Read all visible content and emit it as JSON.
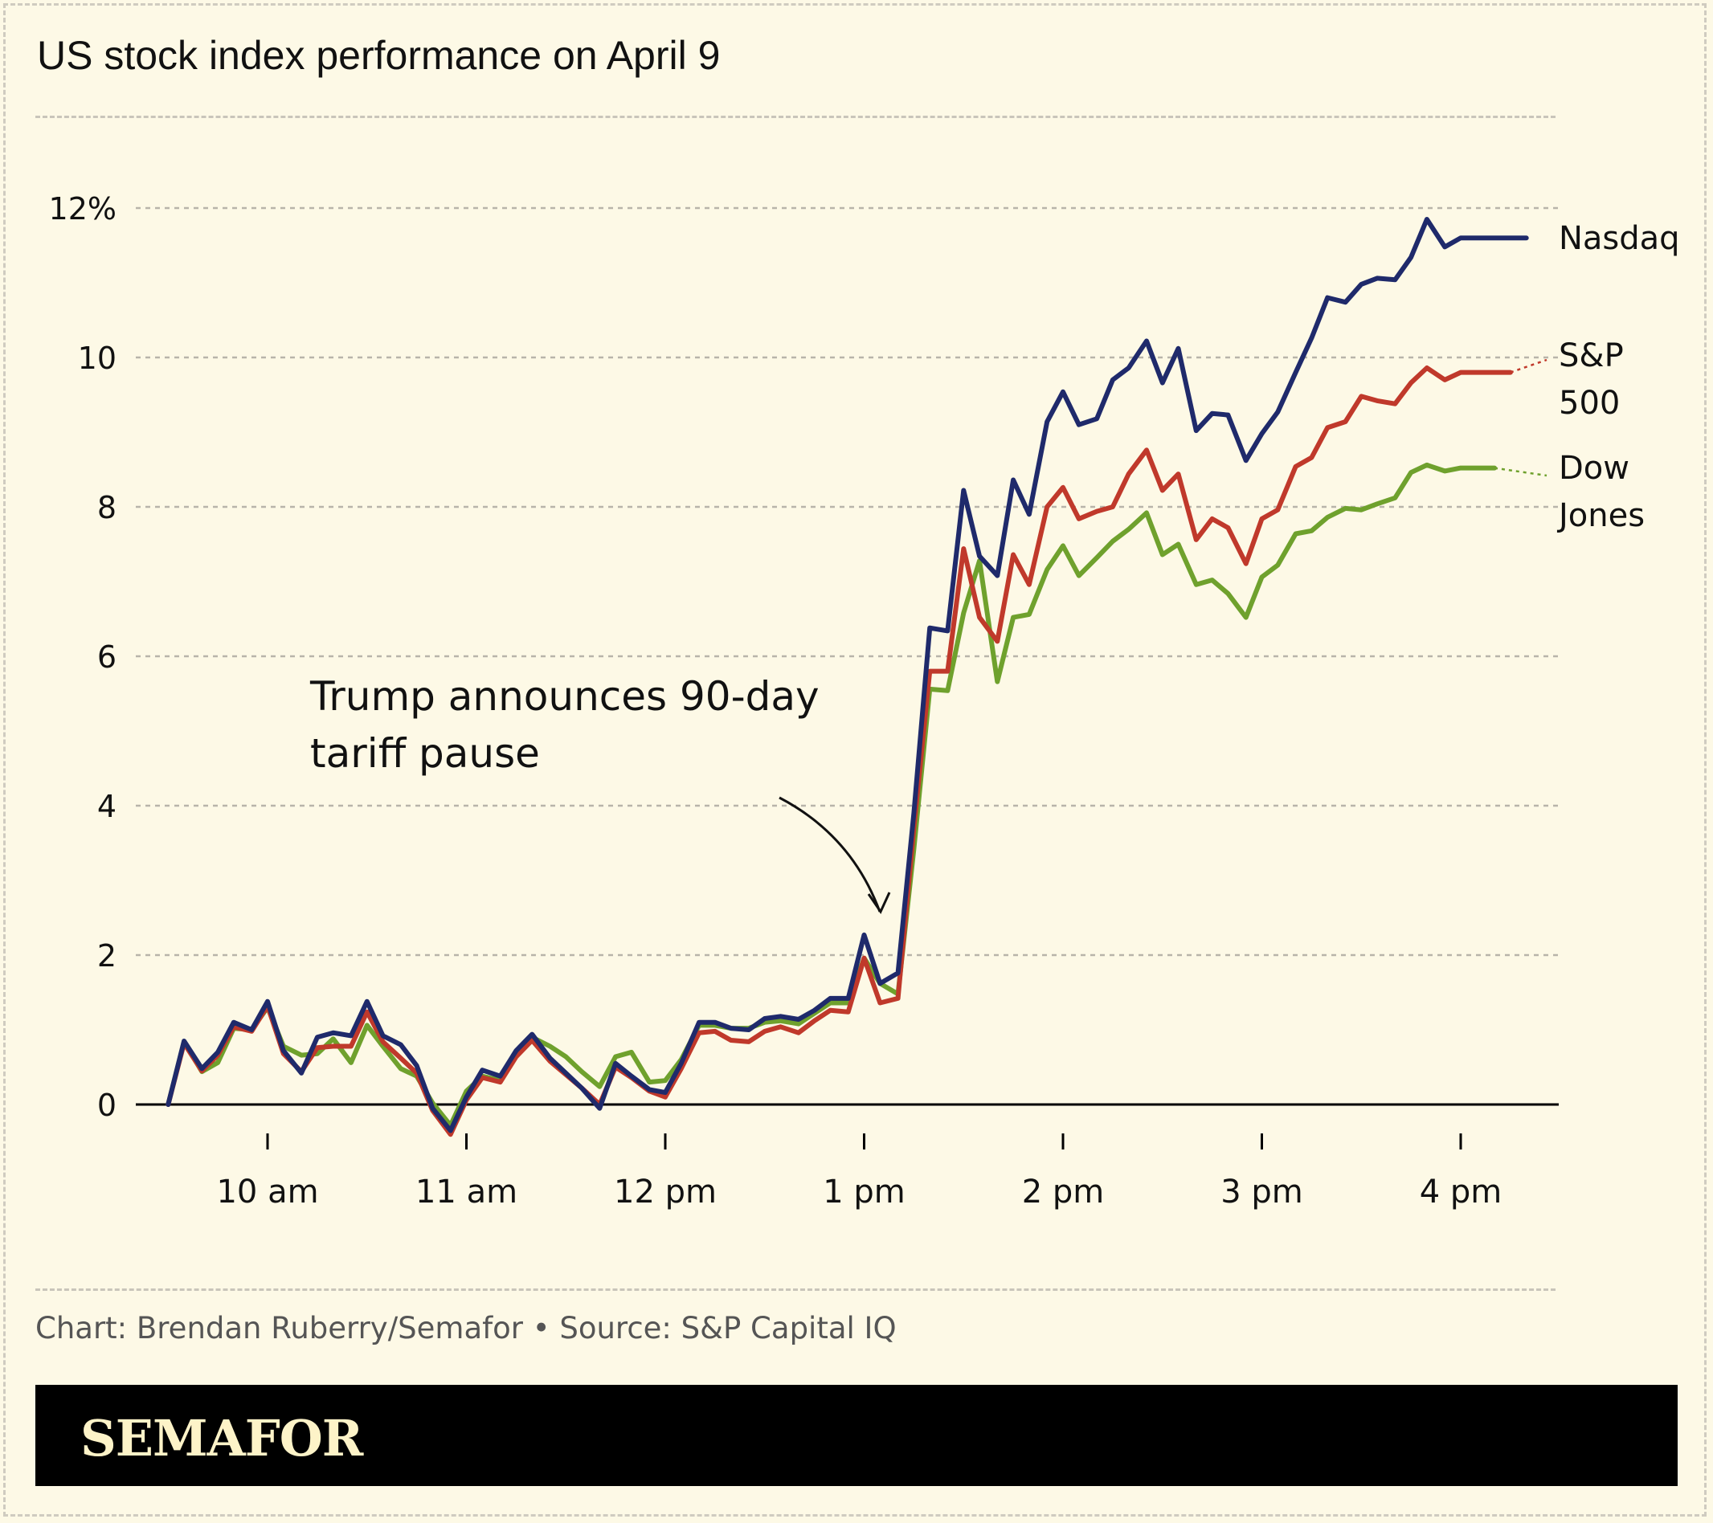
{
  "header": {
    "title": "US stock index performance on April 9"
  },
  "annotation": {
    "text_lines": [
      "Trump announces 90-day",
      "tariff pause"
    ]
  },
  "footer": {
    "credit": "Chart: Brendan Ruberry/Semafor • Source: S&P Capital IQ"
  },
  "brand": {
    "name": "SEMAFOR"
  },
  "colors": {
    "background": "#fdf9e6",
    "nasdaq": "#1f2a6b",
    "sp500": "#c0392b",
    "dow": "#6fa12d",
    "grid": "#b8b4aa",
    "axis": "#000000"
  },
  "chart_data": {
    "type": "line",
    "title": "US stock index performance on April 9",
    "xlabel": "",
    "ylabel": "",
    "x_unit": "hour (24h clock)",
    "xlim": [
      9.5,
      16.25
    ],
    "ylim": [
      0,
      12
    ],
    "grid": "horizontal dashed",
    "legend": "direct labels at right end of lines",
    "x_ticks": [
      {
        "value": 10,
        "label": "10 am"
      },
      {
        "value": 11,
        "label": "11 am"
      },
      {
        "value": 12,
        "label": "12 pm"
      },
      {
        "value": 13,
        "label": "1 pm"
      },
      {
        "value": 14,
        "label": "2 pm"
      },
      {
        "value": 15,
        "label": "3 pm"
      },
      {
        "value": 16,
        "label": "4 pm"
      }
    ],
    "y_ticks": [
      {
        "value": 0,
        "label": "0"
      },
      {
        "value": 2,
        "label": "2"
      },
      {
        "value": 4,
        "label": "4"
      },
      {
        "value": 6,
        "label": "6"
      },
      {
        "value": 8,
        "label": "8"
      },
      {
        "value": 10,
        "label": "10"
      },
      {
        "value": 12,
        "label": "12%"
      }
    ],
    "annotation_x": 13.08,
    "annotation_y": 2.5,
    "series": [
      {
        "key": "nasdaq",
        "name": "Nasdaq",
        "label_lines": [
          "Nasdaq"
        ],
        "color": "#1f2a6b",
        "values": [
          [
            9.5,
            0
          ],
          [
            9.58,
            0.85
          ],
          [
            9.67,
            0.48
          ],
          [
            9.75,
            0.7
          ],
          [
            9.83,
            1.1
          ],
          [
            9.92,
            1.0
          ],
          [
            10.0,
            1.38
          ],
          [
            10.08,
            0.72
          ],
          [
            10.17,
            0.42
          ],
          [
            10.25,
            0.9
          ],
          [
            10.33,
            0.96
          ],
          [
            10.42,
            0.92
          ],
          [
            10.5,
            1.38
          ],
          [
            10.58,
            0.92
          ],
          [
            10.67,
            0.8
          ],
          [
            10.75,
            0.52
          ],
          [
            10.83,
            -0.05
          ],
          [
            10.92,
            -0.35
          ],
          [
            11.0,
            0.1
          ],
          [
            11.08,
            0.46
          ],
          [
            11.17,
            0.38
          ],
          [
            11.25,
            0.72
          ],
          [
            11.33,
            0.94
          ],
          [
            11.42,
            0.62
          ],
          [
            11.5,
            0.42
          ],
          [
            11.58,
            0.22
          ],
          [
            11.67,
            -0.05
          ],
          [
            11.75,
            0.55
          ],
          [
            11.83,
            0.38
          ],
          [
            11.92,
            0.2
          ],
          [
            12.0,
            0.16
          ],
          [
            12.08,
            0.55
          ],
          [
            12.17,
            1.1
          ],
          [
            12.25,
            1.1
          ],
          [
            12.33,
            1.02
          ],
          [
            12.42,
            1.0
          ],
          [
            12.5,
            1.15
          ],
          [
            12.58,
            1.18
          ],
          [
            12.67,
            1.14
          ],
          [
            12.75,
            1.26
          ],
          [
            12.83,
            1.42
          ],
          [
            12.92,
            1.42
          ],
          [
            13.0,
            2.27
          ],
          [
            13.08,
            1.62
          ],
          [
            13.17,
            1.76
          ],
          [
            13.25,
            3.9
          ],
          [
            13.33,
            6.38
          ],
          [
            13.42,
            6.34
          ],
          [
            13.5,
            8.22
          ],
          [
            13.58,
            7.34
          ],
          [
            13.67,
            7.08
          ],
          [
            13.75,
            8.36
          ],
          [
            13.83,
            7.9
          ],
          [
            13.92,
            9.14
          ],
          [
            14.0,
            9.54
          ],
          [
            14.08,
            9.1
          ],
          [
            14.17,
            9.18
          ],
          [
            14.25,
            9.7
          ],
          [
            14.33,
            9.86
          ],
          [
            14.42,
            10.22
          ],
          [
            14.5,
            9.66
          ],
          [
            14.58,
            10.12
          ],
          [
            14.67,
            9.02
          ],
          [
            14.75,
            9.25
          ],
          [
            14.83,
            9.23
          ],
          [
            14.92,
            8.62
          ],
          [
            15.0,
            8.98
          ],
          [
            15.08,
            9.27
          ],
          [
            15.17,
            9.8
          ],
          [
            15.25,
            10.26
          ],
          [
            15.33,
            10.8
          ],
          [
            15.42,
            10.74
          ],
          [
            15.5,
            10.98
          ],
          [
            15.58,
            11.06
          ],
          [
            15.67,
            11.04
          ],
          [
            15.75,
            11.34
          ],
          [
            15.83,
            11.85
          ],
          [
            15.92,
            11.48
          ],
          [
            16.0,
            11.6
          ],
          [
            16.08,
            11.6
          ],
          [
            16.17,
            11.6
          ],
          [
            16.33,
            11.6
          ]
        ]
      },
      {
        "key": "sp500",
        "name": "S&P 500",
        "label_lines": [
          "S&P",
          "500"
        ],
        "color": "#c0392b",
        "values": [
          [
            9.5,
            0
          ],
          [
            9.58,
            0.82
          ],
          [
            9.67,
            0.45
          ],
          [
            9.75,
            0.66
          ],
          [
            9.83,
            1.04
          ],
          [
            9.92,
            0.98
          ],
          [
            10.0,
            1.32
          ],
          [
            10.08,
            0.68
          ],
          [
            10.17,
            0.44
          ],
          [
            10.25,
            0.76
          ],
          [
            10.33,
            0.78
          ],
          [
            10.42,
            0.78
          ],
          [
            10.5,
            1.24
          ],
          [
            10.58,
            0.84
          ],
          [
            10.67,
            0.62
          ],
          [
            10.75,
            0.42
          ],
          [
            10.83,
            -0.08
          ],
          [
            10.92,
            -0.4
          ],
          [
            11.0,
            0.06
          ],
          [
            11.08,
            0.36
          ],
          [
            11.17,
            0.3
          ],
          [
            11.25,
            0.64
          ],
          [
            11.33,
            0.86
          ],
          [
            11.42,
            0.58
          ],
          [
            11.5,
            0.4
          ],
          [
            11.58,
            0.22
          ],
          [
            11.67,
            0.0
          ],
          [
            11.75,
            0.5
          ],
          [
            11.83,
            0.36
          ],
          [
            11.92,
            0.18
          ],
          [
            12.0,
            0.1
          ],
          [
            12.08,
            0.48
          ],
          [
            12.17,
            0.96
          ],
          [
            12.25,
            0.98
          ],
          [
            12.33,
            0.86
          ],
          [
            12.42,
            0.84
          ],
          [
            12.5,
            0.98
          ],
          [
            12.58,
            1.04
          ],
          [
            12.67,
            0.96
          ],
          [
            12.75,
            1.12
          ],
          [
            12.83,
            1.26
          ],
          [
            12.92,
            1.24
          ],
          [
            13.0,
            1.96
          ],
          [
            13.08,
            1.36
          ],
          [
            13.17,
            1.42
          ],
          [
            13.25,
            3.7
          ],
          [
            13.33,
            5.8
          ],
          [
            13.42,
            5.8
          ],
          [
            13.5,
            7.44
          ],
          [
            13.58,
            6.52
          ],
          [
            13.67,
            6.2
          ],
          [
            13.75,
            7.36
          ],
          [
            13.83,
            6.96
          ],
          [
            13.92,
            8.0
          ],
          [
            14.0,
            8.26
          ],
          [
            14.08,
            7.84
          ],
          [
            14.17,
            7.94
          ],
          [
            14.25,
            8.0
          ],
          [
            14.33,
            8.44
          ],
          [
            14.42,
            8.76
          ],
          [
            14.5,
            8.22
          ],
          [
            14.58,
            8.44
          ],
          [
            14.67,
            7.56
          ],
          [
            14.75,
            7.84
          ],
          [
            14.83,
            7.72
          ],
          [
            14.92,
            7.24
          ],
          [
            15.0,
            7.84
          ],
          [
            15.08,
            7.96
          ],
          [
            15.17,
            8.54
          ],
          [
            15.25,
            8.66
          ],
          [
            15.33,
            9.06
          ],
          [
            15.42,
            9.14
          ],
          [
            15.5,
            9.48
          ],
          [
            15.58,
            9.42
          ],
          [
            15.67,
            9.38
          ],
          [
            15.75,
            9.66
          ],
          [
            15.83,
            9.86
          ],
          [
            15.92,
            9.7
          ],
          [
            16.0,
            9.8
          ],
          [
            16.08,
            9.8
          ],
          [
            16.17,
            9.8
          ],
          [
            16.25,
            9.8
          ]
        ]
      },
      {
        "key": "dow",
        "name": "Dow Jones",
        "label_lines": [
          "Dow",
          "Jones"
        ],
        "color": "#6fa12d",
        "values": [
          [
            9.5,
            0
          ],
          [
            9.58,
            0.84
          ],
          [
            9.67,
            0.44
          ],
          [
            9.75,
            0.56
          ],
          [
            9.83,
            1.02
          ],
          [
            9.92,
            1.0
          ],
          [
            10.0,
            1.3
          ],
          [
            10.08,
            0.78
          ],
          [
            10.17,
            0.66
          ],
          [
            10.25,
            0.68
          ],
          [
            10.33,
            0.88
          ],
          [
            10.42,
            0.56
          ],
          [
            10.5,
            1.06
          ],
          [
            10.58,
            0.78
          ],
          [
            10.67,
            0.48
          ],
          [
            10.75,
            0.38
          ],
          [
            10.83,
            0.02
          ],
          [
            10.92,
            -0.28
          ],
          [
            11.0,
            0.18
          ],
          [
            11.08,
            0.38
          ],
          [
            11.17,
            0.32
          ],
          [
            11.25,
            0.7
          ],
          [
            11.33,
            0.9
          ],
          [
            11.42,
            0.78
          ],
          [
            11.5,
            0.64
          ],
          [
            11.58,
            0.44
          ],
          [
            11.67,
            0.24
          ],
          [
            11.75,
            0.64
          ],
          [
            11.83,
            0.7
          ],
          [
            11.92,
            0.3
          ],
          [
            12.0,
            0.32
          ],
          [
            12.08,
            0.6
          ],
          [
            12.17,
            1.06
          ],
          [
            12.25,
            1.06
          ],
          [
            12.33,
            1.02
          ],
          [
            12.42,
            1.02
          ],
          [
            12.5,
            1.1
          ],
          [
            12.58,
            1.12
          ],
          [
            12.67,
            1.08
          ],
          [
            12.75,
            1.22
          ],
          [
            12.83,
            1.36
          ],
          [
            12.92,
            1.36
          ],
          [
            13.0,
            1.96
          ],
          [
            13.08,
            1.62
          ],
          [
            13.17,
            1.48
          ],
          [
            13.25,
            3.42
          ],
          [
            13.33,
            5.56
          ],
          [
            13.42,
            5.54
          ],
          [
            13.5,
            6.58
          ],
          [
            13.58,
            7.28
          ],
          [
            13.67,
            5.66
          ],
          [
            13.75,
            6.52
          ],
          [
            13.83,
            6.56
          ],
          [
            13.92,
            7.16
          ],
          [
            14.0,
            7.48
          ],
          [
            14.08,
            7.08
          ],
          [
            14.17,
            7.32
          ],
          [
            14.25,
            7.54
          ],
          [
            14.33,
            7.7
          ],
          [
            14.42,
            7.92
          ],
          [
            14.5,
            7.36
          ],
          [
            14.58,
            7.5
          ],
          [
            14.67,
            6.96
          ],
          [
            14.75,
            7.02
          ],
          [
            14.83,
            6.84
          ],
          [
            14.92,
            6.52
          ],
          [
            15.0,
            7.06
          ],
          [
            15.08,
            7.22
          ],
          [
            15.17,
            7.64
          ],
          [
            15.25,
            7.68
          ],
          [
            15.33,
            7.86
          ],
          [
            15.42,
            7.98
          ],
          [
            15.5,
            7.96
          ],
          [
            15.58,
            8.04
          ],
          [
            15.67,
            8.12
          ],
          [
            15.75,
            8.46
          ],
          [
            15.83,
            8.56
          ],
          [
            15.92,
            8.48
          ],
          [
            16.0,
            8.52
          ],
          [
            16.08,
            8.52
          ],
          [
            16.17,
            8.52
          ]
        ]
      }
    ]
  }
}
